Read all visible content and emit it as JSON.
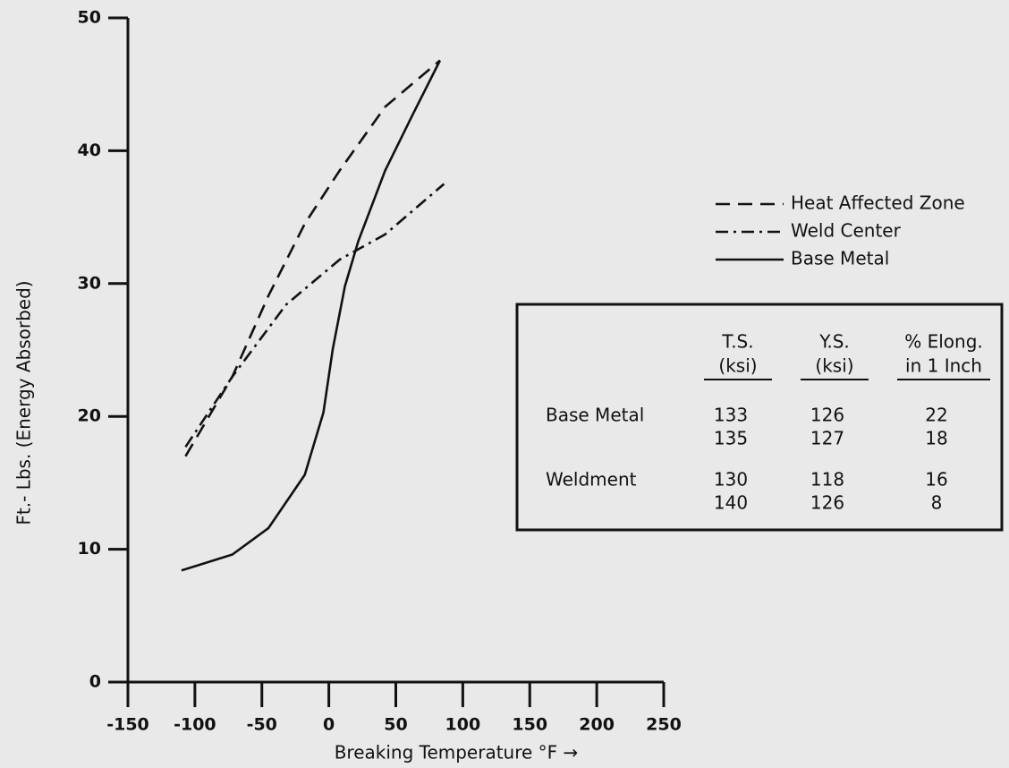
{
  "chart_data": {
    "type": "line",
    "xlabel": "Breaking Temperature °F →",
    "ylabel": "Ft.- Lbs. (Energy Absorbed)",
    "xlim": [
      -150,
      250
    ],
    "ylim": [
      0,
      50
    ],
    "xticks": [
      -150,
      -100,
      -50,
      0,
      50,
      100,
      150,
      200,
      250
    ],
    "yticks": [
      0,
      10,
      20,
      30,
      40,
      50
    ],
    "series": [
      {
        "name": "Heat Affected Zone",
        "color": "#111111",
        "style": "dashed",
        "x": [
          -107,
          -72,
          -45,
          -18,
          8,
          42,
          83
        ],
        "values": [
          17,
          23,
          29.1,
          34.5,
          38.5,
          43.3,
          46.8
        ]
      },
      {
        "name": "Weld Center",
        "color": "#111111",
        "style": "dash-dot",
        "x": [
          -107,
          -72,
          -32,
          8,
          42,
          86
        ],
        "values": [
          17.7,
          23,
          28.4,
          31.8,
          33.7,
          37.5
        ]
      },
      {
        "name": "Base Metal",
        "color": "#111111",
        "style": "solid",
        "x": [
          -110,
          -72,
          -45,
          -18,
          -4,
          3,
          12,
          22,
          42,
          62,
          83
        ],
        "values": [
          8.4,
          9.6,
          11.6,
          15.6,
          20.3,
          25.1,
          29.8,
          33.2,
          38.5,
          42.6,
          46.8
        ]
      }
    ]
  },
  "table": {
    "columns": [
      [
        "T.S.",
        "(ksi)"
      ],
      [
        "Y.S.",
        "(ksi)"
      ],
      [
        "% Elong.",
        "in 1 Inch"
      ]
    ],
    "rows": [
      {
        "label": "Base Metal",
        "values": [
          [
            133,
            135
          ],
          [
            126,
            127
          ],
          [
            22,
            18
          ]
        ]
      },
      {
        "label": "Weldment",
        "values": [
          [
            130,
            140
          ],
          [
            118,
            126
          ],
          [
            16,
            8
          ]
        ]
      }
    ]
  }
}
